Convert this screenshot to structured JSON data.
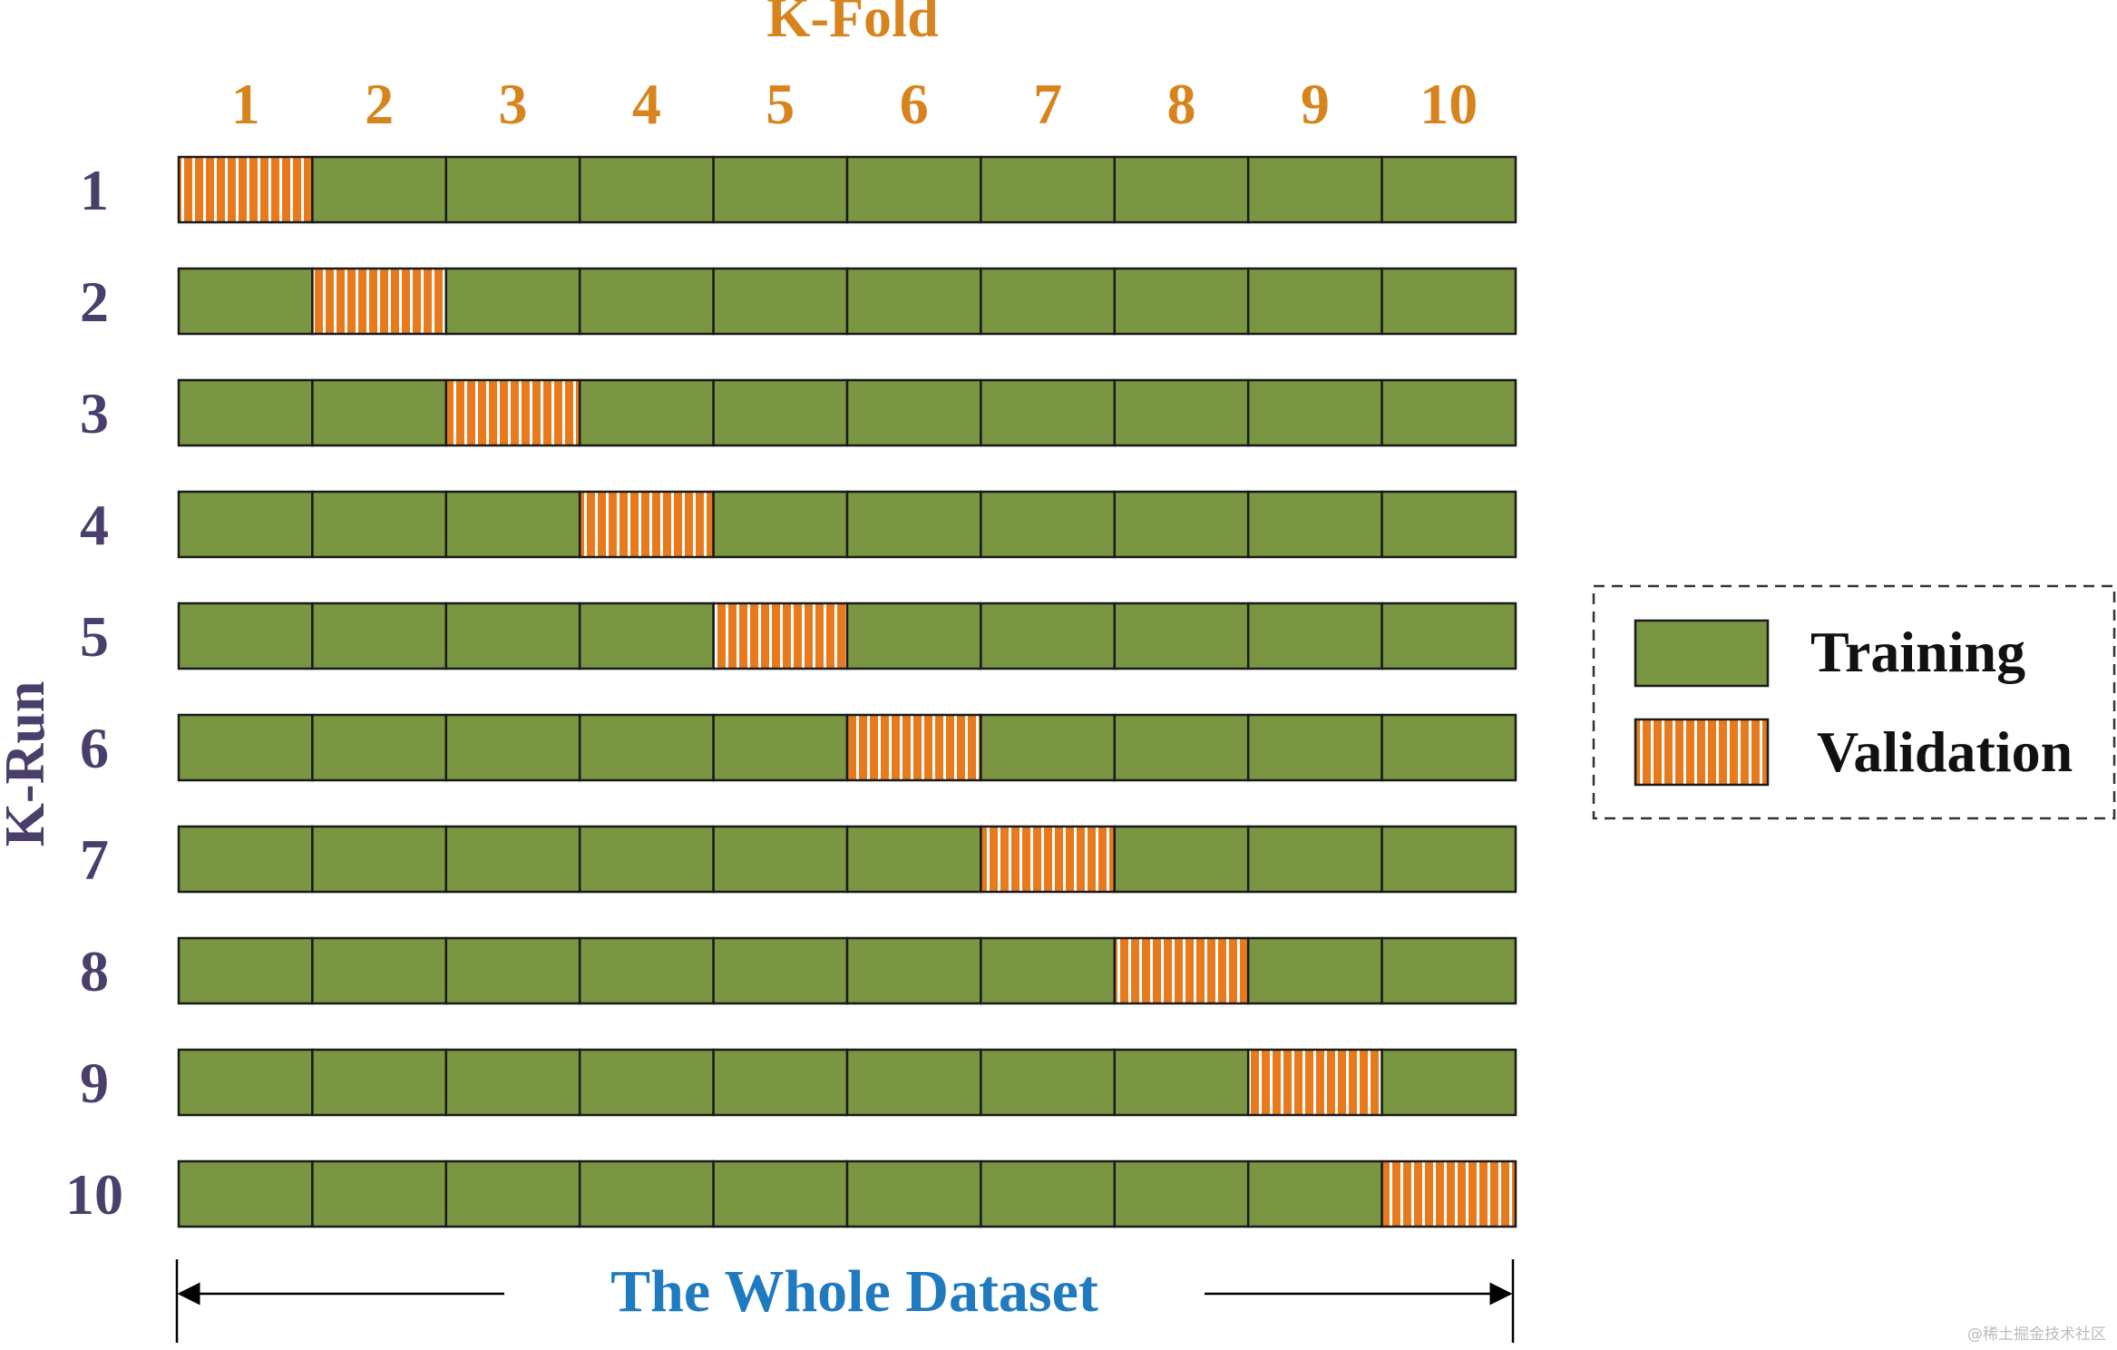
{
  "colors": {
    "training": "#7a9642",
    "validation": "#e87a1e",
    "fold_label": "#d8841e",
    "run_label": "#4a3f6b",
    "dataset_label": "#1f7abf",
    "border": "#1a1a1a"
  },
  "header": {
    "title": "K-Fold",
    "fold_numbers": [
      "1",
      "2",
      "3",
      "4",
      "5",
      "6",
      "7",
      "8",
      "9",
      "10"
    ]
  },
  "side": {
    "title": "K-Run",
    "run_numbers": [
      "1",
      "2",
      "3",
      "4",
      "5",
      "6",
      "7",
      "8",
      "9",
      "10"
    ]
  },
  "grid": {
    "folds": 10,
    "runs": 10,
    "validation_fold_per_run": [
      1,
      2,
      3,
      4,
      5,
      6,
      7,
      8,
      9,
      10
    ]
  },
  "legend": {
    "training_label": "Training",
    "validation_label": "Validation"
  },
  "footer": {
    "dataset_label": "The Whole Dataset"
  },
  "watermark": "@稀土掘金技术社区"
}
